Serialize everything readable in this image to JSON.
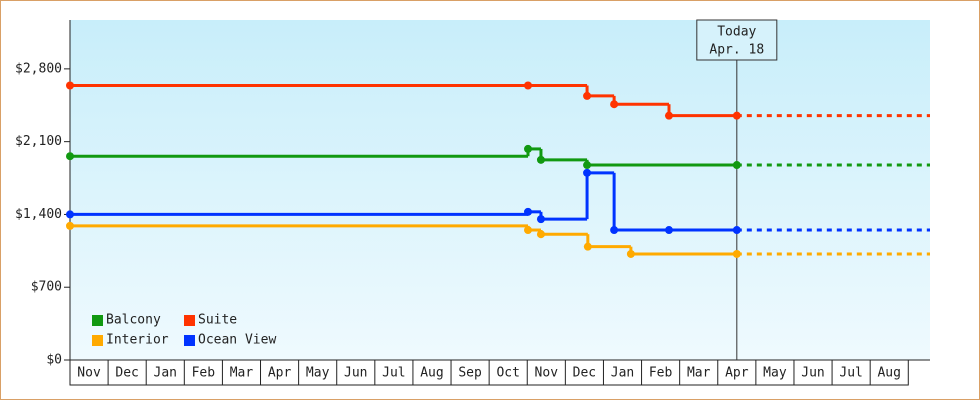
{
  "chart_data": {
    "type": "step-line",
    "categories": [
      "Nov",
      "Dec",
      "Jan",
      "Feb",
      "Mar",
      "Apr",
      "May",
      "Jun",
      "Jul",
      "Aug",
      "Sep",
      "Oct",
      "Nov",
      "Dec",
      "Jan",
      "Feb",
      "Mar",
      "Apr",
      "May",
      "Jun",
      "Jul",
      "Aug"
    ],
    "xlim": [
      0,
      22.57
    ],
    "ylim": [
      0,
      3270
    ],
    "yticks": [
      {
        "value": 0,
        "label": "$0"
      },
      {
        "value": 700,
        "label": "$700"
      },
      {
        "value": 1400,
        "label": "$1,400"
      },
      {
        "value": 2100,
        "label": "$2,100"
      },
      {
        "value": 2800,
        "label": "$2,800"
      }
    ],
    "grid": false,
    "legend": "lower left",
    "today": {
      "x": 17.5,
      "label": [
        "Today",
        "Apr. 18"
      ]
    },
    "series": [
      {
        "name": "Balcony",
        "color": "#119911",
        "x": [
          0,
          12.02,
          12.36,
          13.57,
          17.5
        ],
        "values": [
          1960,
          2030,
          1925,
          1875,
          1875
        ]
      },
      {
        "name": "Suite",
        "color": "#ff3300",
        "x": [
          0,
          12.02,
          13.57,
          14.28,
          15.72,
          17.5
        ],
        "values": [
          2640,
          2640,
          2540,
          2460,
          2350,
          2350
        ]
      },
      {
        "name": "Interior",
        "color": "#ffaa00",
        "x": [
          0,
          12.02,
          12.36,
          13.59,
          14.72,
          17.5
        ],
        "values": [
          1290,
          1250,
          1210,
          1090,
          1020,
          1020
        ]
      },
      {
        "name": "Ocean View",
        "color": "#0033ff",
        "x": [
          0,
          12.02,
          12.36,
          13.57,
          14.28,
          15.72,
          17.5
        ],
        "values": [
          1400,
          1425,
          1355,
          1800,
          1250,
          1250,
          1250
        ]
      }
    ]
  }
}
